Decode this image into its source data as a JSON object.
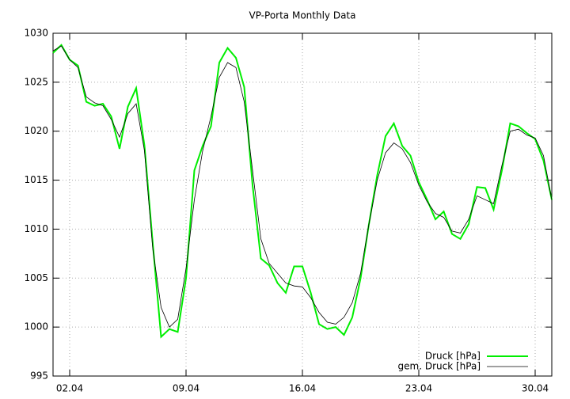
{
  "chart_data": {
    "type": "line",
    "title": "VP-Porta Monthly Data",
    "x": [
      1,
      1.5,
      2,
      2.5,
      3,
      3.5,
      4,
      4.5,
      5,
      5.5,
      6,
      6.5,
      7,
      7.5,
      8,
      8.5,
      9,
      9.5,
      10,
      10.5,
      11,
      11.5,
      12,
      12.5,
      13,
      13.5,
      14,
      14.5,
      15,
      15.5,
      16,
      16.5,
      17,
      17.5,
      18,
      18.5,
      19,
      19.5,
      20,
      20.5,
      21,
      21.5,
      22,
      22.5,
      23,
      23.5,
      24,
      24.5,
      25,
      25.5,
      26,
      26.5,
      27,
      27.5,
      28,
      28.5,
      29,
      29.5,
      30,
      30.5,
      31
    ],
    "series": [
      {
        "name": "Druck [hPa]",
        "color": "#00ee00",
        "width": 2,
        "values": [
          1028,
          1028.8,
          1027.3,
          1026.7,
          1023,
          1022.6,
          1022.8,
          1021.5,
          1018.2,
          1022.5,
          1024.4,
          1018.5,
          1008.5,
          999,
          999.8,
          999.5,
          1005,
          1016,
          1018.5,
          1020.5,
          1027,
          1028.5,
          1027.5,
          1024.5,
          1014.5,
          1007,
          1006.3,
          1004.5,
          1003.5,
          1006.2,
          1006.2,
          1003.5,
          1000.3,
          999.8,
          1000,
          999.2,
          1001,
          1005,
          1010.5,
          1015.5,
          1019.5,
          1020.8,
          1018.5,
          1017.5,
          1014.8,
          1013,
          1011,
          1011.8,
          1009.5,
          1009,
          1010.5,
          1014.3,
          1014.2,
          1012,
          1016,
          1020.8,
          1020.5,
          1019.8,
          1019.2,
          1017,
          1013
        ]
      },
      {
        "name": "gem. Druck [hPa]",
        "color": "#000000",
        "width": 0.8,
        "values": [
          1028.2,
          1028.7,
          1027.3,
          1026.5,
          1023.5,
          1022.9,
          1022.6,
          1021.2,
          1019.4,
          1021.8,
          1022.8,
          1018,
          1008,
          1002,
          1000,
          1000.8,
          1006,
          1013,
          1018,
          1021.5,
          1025.5,
          1027,
          1026.5,
          1023,
          1016,
          1009,
          1006.5,
          1005.5,
          1004.5,
          1004.2,
          1004.1,
          1003,
          1001.5,
          1000.5,
          1000.3,
          1001,
          1002.5,
          1005.5,
          1010.5,
          1015,
          1017.8,
          1018.8,
          1018.2,
          1016.8,
          1014.5,
          1012.8,
          1011.6,
          1011.2,
          1009.8,
          1009.6,
          1011,
          1013.4,
          1013,
          1012.6,
          1016.5,
          1020,
          1020.2,
          1019.6,
          1019.3,
          1017.5,
          1013
        ]
      }
    ],
    "xlim": [
      1,
      31
    ],
    "xticks": [
      {
        "value": 2,
        "label": "02.04"
      },
      {
        "value": 9,
        "label": "09.04"
      },
      {
        "value": 16,
        "label": "16.04"
      },
      {
        "value": 23,
        "label": "23.04"
      },
      {
        "value": 30,
        "label": "30.04"
      }
    ],
    "ylim": [
      995,
      1030
    ],
    "yticks": [
      995,
      1000,
      1005,
      1010,
      1015,
      1020,
      1025,
      1030
    ],
    "grid": true,
    "legend": "lower right"
  }
}
